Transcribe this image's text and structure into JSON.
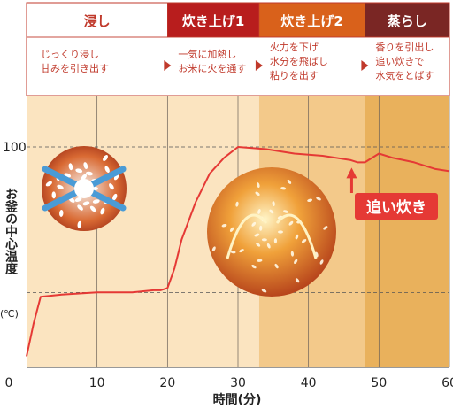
{
  "chart_data": {
    "type": "line",
    "stages": [
      {
        "name": "浸し",
        "desc": [
          "じっくり浸し",
          "甘みを引き出す"
        ],
        "range": [
          0,
          20
        ],
        "header_color": "#ffffff",
        "header_text_color": "#c0392b",
        "band_color": "#fbe4c0"
      },
      {
        "name": "炊き上げ1",
        "desc": [
          "一気に加熱し",
          "お米に火を通す"
        ],
        "range": [
          20,
          33
        ],
        "header_color": "#b81d1d",
        "header_text_color": "#ffffff",
        "band_color": "#fbe4c0"
      },
      {
        "name": "炊き上げ2",
        "desc": [
          "火力を下げ",
          "水分を飛ばし",
          "粘りを出す"
        ],
        "range": [
          33,
          48
        ],
        "header_color": "#d9611b",
        "header_text_color": "#ffffff",
        "band_color": "#f3c98a"
      },
      {
        "name": "蒸らし",
        "desc": [
          "香りを引出し",
          "追い炊きで",
          "水気をとばす"
        ],
        "range": [
          48,
          60
        ],
        "header_color": "#7a2624",
        "header_text_color": "#ffffff",
        "band_color": "#e9b15c"
      }
    ],
    "x": [
      0,
      1,
      2,
      5,
      10,
      15,
      18,
      19,
      20,
      21,
      22,
      24,
      26,
      28,
      30,
      34,
      38,
      42,
      46,
      47,
      48,
      49,
      50,
      52,
      55,
      58,
      60
    ],
    "series": [
      {
        "values": [
          5,
          20,
          32,
          33,
          34,
          34,
          35,
          35,
          36,
          45,
          58,
          75,
          88,
          95,
          100,
          99,
          97,
          96,
          94,
          93,
          93,
          95,
          97,
          95,
          93,
          90,
          89
        ],
        "color": "#e53935"
      }
    ],
    "xlim": [
      0,
      60
    ],
    "ylim": [
      0,
      105
    ],
    "xticks": [
      0,
      10,
      20,
      30,
      40,
      50,
      60
    ],
    "y_tick_label": "100",
    "y_tick_value": 100,
    "ref_line_value": 34,
    "xlabel": "時間(分)",
    "ylabel": "お釜の中心温度",
    "yunit": "(℃)",
    "annotation": {
      "text": "追い炊き",
      "x": 47,
      "y": 93,
      "color": "#e53935"
    }
  }
}
